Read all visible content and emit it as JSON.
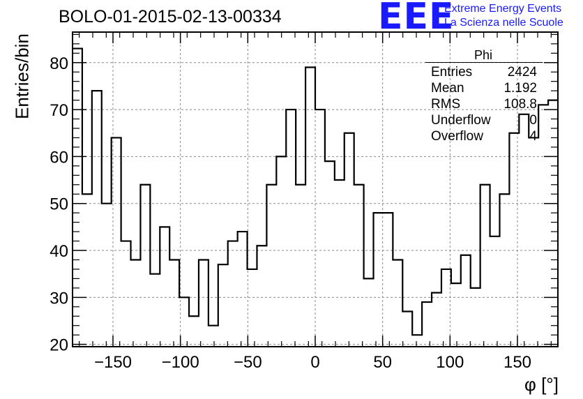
{
  "chart_data": {
    "type": "histogram",
    "title": "BOLO-01-2015-02-13-00334",
    "xlabel": "φ [°]",
    "ylabel": "Entries/bin",
    "xlim": [
      -180,
      180
    ],
    "ylim": [
      19.5,
      86.5
    ],
    "grid": true,
    "bin_edges": [
      -180,
      -172.8,
      -165.6,
      -158.4,
      -151.2,
      -144,
      -136.8,
      -129.6,
      -122.4,
      -115.2,
      -108,
      -100.8,
      -93.6,
      -86.4,
      -79.2,
      -72,
      -64.8,
      -57.6,
      -50.4,
      -43.2,
      -36,
      -28.8,
      -21.6,
      -14.4,
      -7.2,
      0,
      7.2,
      14.4,
      21.6,
      28.8,
      36,
      43.2,
      50.4,
      57.6,
      64.8,
      72,
      79.2,
      86.4,
      93.6,
      100.8,
      108,
      115.2,
      122.4,
      129.6,
      136.8,
      144,
      151.2,
      158.4,
      165.6,
      172.8,
      180
    ],
    "values": [
      83,
      52,
      74,
      50,
      64,
      42,
      38,
      54,
      35,
      45,
      38,
      30,
      26,
      38,
      24,
      37,
      42,
      44,
      36,
      41,
      54,
      60,
      70,
      54,
      79,
      70,
      59,
      55,
      65,
      54,
      34,
      48,
      48,
      38,
      27,
      22,
      29,
      31,
      36,
      33,
      39,
      32,
      54,
      43,
      52,
      65,
      69,
      64,
      71,
      72
    ],
    "x_ticks": [
      -150,
      -100,
      -50,
      0,
      50,
      100,
      150
    ],
    "x_tick_labels": [
      "−150",
      "−100",
      "−50",
      "0",
      "50",
      "100",
      "150"
    ],
    "y_ticks": [
      20,
      30,
      40,
      50,
      60,
      70,
      80
    ],
    "y_tick_labels": [
      "20",
      "30",
      "40",
      "50",
      "60",
      "70",
      "80"
    ]
  },
  "stats_box": {
    "title": "Phi",
    "rows": [
      {
        "key": "Entries",
        "value": "2424"
      },
      {
        "key": "Mean",
        "value": "1.192"
      },
      {
        "key": "RMS",
        "value": "108.8"
      },
      {
        "key": "Underflow",
        "value": "0"
      },
      {
        "key": "Overflow",
        "value": "4"
      }
    ]
  },
  "logo": {
    "mark": "EEE",
    "line1": "Extreme Energy Events",
    "line2": "La Scienza nelle Scuole",
    "color": "#1a1aff"
  }
}
